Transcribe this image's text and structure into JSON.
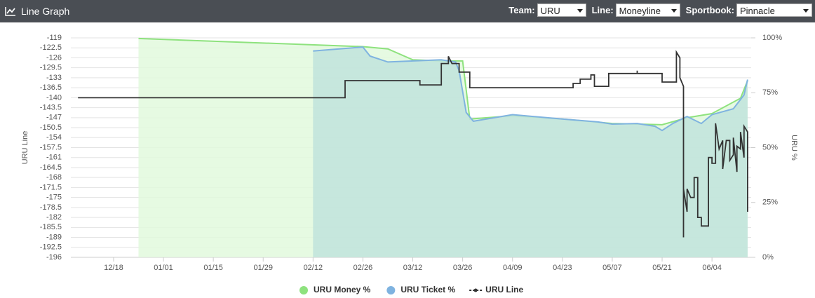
{
  "header": {
    "title": "Line Graph",
    "controls": [
      {
        "label": "Team:",
        "value": "URU"
      },
      {
        "label": "Line:",
        "value": "Moneyline"
      },
      {
        "label": "Sportbook:",
        "value": "Pinnacle"
      }
    ]
  },
  "chart_data": {
    "type": "line",
    "ylabel": "URU Line",
    "y2label": "URU %",
    "xlim": [
      "12/06",
      "06/15"
    ],
    "xticks": [
      "12/18",
      "01/01",
      "01/15",
      "01/29",
      "02/12",
      "02/26",
      "03/12",
      "03/26",
      "04/09",
      "04/23",
      "05/07",
      "05/21",
      "06/04"
    ],
    "ylim": [
      -196,
      -119
    ],
    "yticks": [
      -119,
      -122.5,
      -126,
      -129.5,
      -133,
      -136.5,
      -140,
      -143.5,
      -147,
      -150.5,
      -154,
      -157.5,
      -161,
      -164.5,
      -168,
      -171.5,
      -175,
      -178.5,
      -182,
      -185.5,
      -189,
      -192.5,
      -196
    ],
    "y2lim": [
      0,
      100
    ],
    "y2ticks": [
      {
        "value": 0,
        "label": "0%"
      },
      {
        "value": 25,
        "label": "25%"
      },
      {
        "value": 50,
        "label": "50%"
      },
      {
        "value": 75,
        "label": "75%"
      },
      {
        "value": 100,
        "label": "100%"
      }
    ],
    "grid": true,
    "series": [
      {
        "name": "URU Money %",
        "color": "#8ee27e",
        "fill": "#e2f9dd",
        "axis": "y2",
        "x": [
          "12/25",
          "02/26",
          "03/05",
          "03/12",
          "03/20",
          "03/26",
          "03/28",
          "04/09",
          "04/23",
          "05/07",
          "05/21",
          "05/28",
          "06/04",
          "06/12",
          "06/14"
        ],
        "values": [
          99.7,
          96,
          95,
          90,
          89.5,
          89.5,
          63,
          64.5,
          63,
          61,
          60.4,
          63.6,
          65.5,
          72.5,
          80.5
        ]
      },
      {
        "name": "URU Ticket %",
        "color": "#7fb3e0",
        "fill": "#bfe3dc",
        "axis": "y2",
        "x": [
          "02/12",
          "02/26",
          "02/28",
          "03/05",
          "03/20",
          "03/24",
          "03/25",
          "03/27",
          "03/29",
          "04/09",
          "04/23",
          "05/03",
          "05/07",
          "05/14",
          "05/19",
          "05/21",
          "05/24",
          "05/28",
          "06/01",
          "06/04",
          "06/10",
          "06/13",
          "06/14"
        ],
        "values": [
          94,
          95.8,
          91.7,
          89,
          90,
          89,
          85,
          66,
          62,
          65,
          63,
          61.7,
          60.7,
          61,
          59.7,
          57.8,
          61,
          64.2,
          61,
          65,
          67.7,
          74,
          81
        ]
      },
      {
        "name": "URU Line",
        "color": "#333333",
        "x": [
          "12/08",
          "02/21",
          "02/21",
          "03/14",
          "03/14",
          "03/20",
          "03/20",
          "03/22",
          "03/22",
          "03/23",
          "03/25",
          "03/25",
          "03/28",
          "03/28",
          "04/26",
          "04/26",
          "04/28",
          "04/28",
          "05/01",
          "05/01",
          "05/02",
          "05/02",
          "05/06",
          "05/06",
          "05/14",
          "05/14",
          "05/14",
          "05/21",
          "05/21",
          "05/25",
          "05/25",
          "05/26",
          "05/26",
          "05/27",
          "05/27",
          "05/27",
          "05/28",
          "05/28",
          "05/29",
          "05/30",
          "05/30",
          "05/31",
          "05/31",
          "06/01",
          "06/01",
          "06/03",
          "06/03",
          "06/04",
          "06/04",
          "06/05",
          "06/05",
          "06/06",
          "06/07",
          "06/07",
          "06/08",
          "06/09",
          "06/09",
          "06/10",
          "06/10",
          "06/11",
          "06/11",
          "06/12",
          "06/12",
          "06/13",
          "06/13",
          "06/14",
          "06/14",
          "06/14"
        ],
        "values": [
          -140,
          -140,
          -134,
          -134,
          -135.5,
          -135.5,
          -128,
          -128,
          -125.5,
          -128,
          -128,
          -131,
          -131,
          -136.5,
          -136.5,
          -135,
          -135,
          -133.5,
          -133.5,
          -132,
          -132,
          -136,
          -136,
          -131.5,
          -131.5,
          -130.5,
          -131.5,
          -131.5,
          -134.5,
          -134.5,
          -124,
          -126,
          -133,
          -136,
          -189,
          -172,
          -180,
          -172,
          -175,
          -175,
          -168,
          -168,
          -182,
          -182,
          -185,
          -185,
          -161,
          -161,
          -163,
          -163,
          -149,
          -158,
          -155,
          -165,
          -155,
          -155,
          -162,
          -160,
          -154,
          -166,
          -157,
          -158,
          -152,
          -161,
          -150,
          -152,
          -180,
          -178
        ]
      }
    ]
  }
}
